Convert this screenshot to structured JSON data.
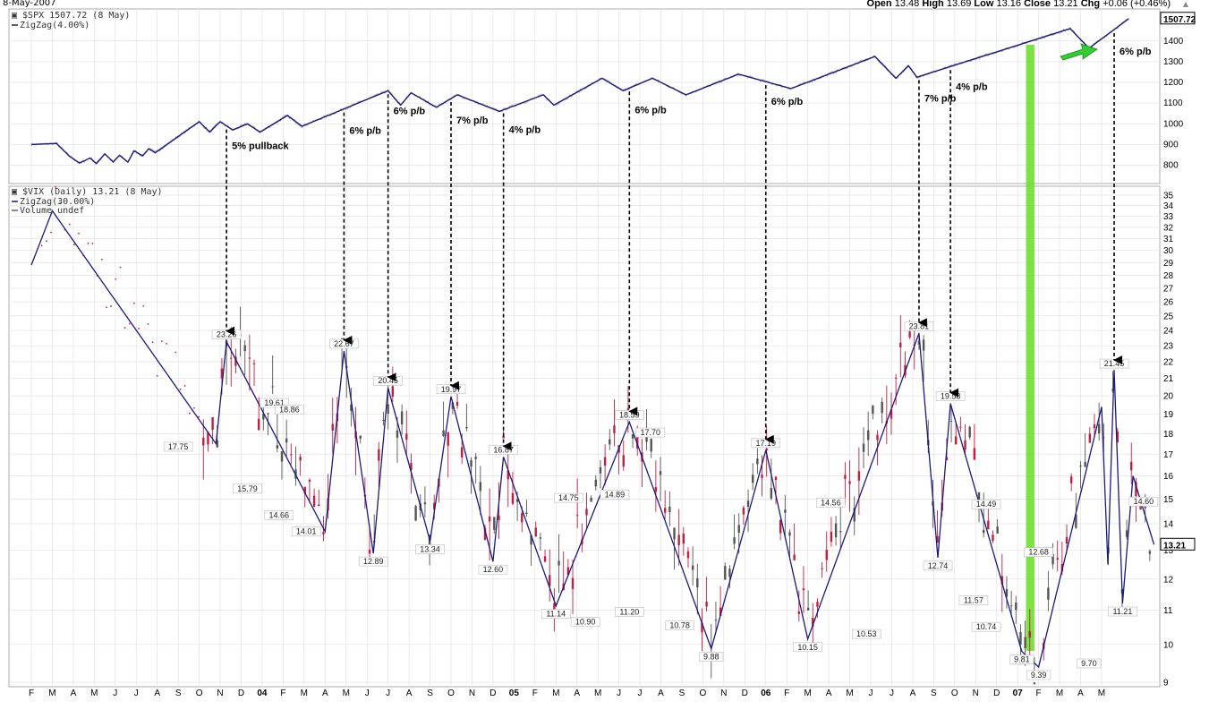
{
  "header": {
    "date": "8-May-2007",
    "open_label": "Open",
    "open": "13.48",
    "high_label": "High",
    "high": "13.69",
    "low_label": "Low",
    "low": "13.16",
    "close_label": "Close",
    "close": "13.21",
    "chg_label": "Chg",
    "chg": "+0.06 (+0.46%)"
  },
  "chart_data": [
    {
      "type": "line",
      "title": "$SPX 1507.72 (8 May)",
      "legend": [
        "ZigZag(4.00%)"
      ],
      "last_value": "1507.72",
      "ylim": [
        720,
        1520
      ],
      "yticks": [
        800,
        900,
        1000,
        1100,
        1200,
        1300,
        1400
      ],
      "zigzag": [
        {
          "t": 0,
          "v": 900
        },
        {
          "t": 1.2,
          "v": 905
        },
        {
          "t": 1.8,
          "v": 845
        },
        {
          "t": 2.3,
          "v": 810
        },
        {
          "t": 2.8,
          "v": 835
        },
        {
          "t": 3.1,
          "v": 808
        },
        {
          "t": 3.5,
          "v": 855
        },
        {
          "t": 3.9,
          "v": 815
        },
        {
          "t": 4.2,
          "v": 848
        },
        {
          "t": 4.6,
          "v": 815
        },
        {
          "t": 4.9,
          "v": 870
        },
        {
          "t": 5.3,
          "v": 845
        },
        {
          "t": 5.6,
          "v": 880
        },
        {
          "t": 5.9,
          "v": 860
        },
        {
          "t": 8.0,
          "v": 1010
        },
        {
          "t": 8.5,
          "v": 960
        },
        {
          "t": 9.0,
          "v": 1010
        },
        {
          "t": 9.6,
          "v": 970
        },
        {
          "t": 10.3,
          "v": 1000
        },
        {
          "t": 10.9,
          "v": 960
        },
        {
          "t": 12.2,
          "v": 1040
        },
        {
          "t": 12.9,
          "v": 988
        },
        {
          "t": 17.0,
          "v": 1160
        },
        {
          "t": 17.6,
          "v": 1090
        },
        {
          "t": 18.1,
          "v": 1150
        },
        {
          "t": 19.3,
          "v": 1080
        },
        {
          "t": 20.3,
          "v": 1140
        },
        {
          "t": 22.3,
          "v": 1060
        },
        {
          "t": 24.4,
          "v": 1140
        },
        {
          "t": 24.9,
          "v": 1090
        },
        {
          "t": 27.2,
          "v": 1220
        },
        {
          "t": 28.2,
          "v": 1160
        },
        {
          "t": 29.6,
          "v": 1220
        },
        {
          "t": 31.2,
          "v": 1140
        },
        {
          "t": 33.7,
          "v": 1240
        },
        {
          "t": 36.2,
          "v": 1170
        },
        {
          "t": 40.2,
          "v": 1325
        },
        {
          "t": 41.2,
          "v": 1220
        },
        {
          "t": 41.8,
          "v": 1280
        },
        {
          "t": 42.2,
          "v": 1225
        },
        {
          "t": 49.5,
          "v": 1460
        },
        {
          "t": 50.4,
          "v": 1365
        },
        {
          "t": 52.3,
          "v": 1508
        }
      ],
      "annotations": [
        {
          "text": "5% pullback",
          "t": 9.5
        },
        {
          "text": "6% p/b",
          "t": 15.0
        },
        {
          "text": "6% p/b",
          "t": 17.4
        },
        {
          "text": "7% p/b",
          "t": 20.3
        },
        {
          "text": "4% p/b",
          "t": 23.0
        },
        {
          "text": "6% p/b",
          "t": 28.8
        },
        {
          "text": "6% p/b",
          "t": 35.0
        },
        {
          "text": "7% p/b",
          "t": 41.2
        },
        {
          "text": "4% p/b",
          "t": 42.7
        },
        {
          "text": "6% p/b",
          "t": 52.0
        }
      ]
    },
    {
      "type": "line",
      "title": "$VIX (Daily) 13.21 (8 May)",
      "legend": [
        "ZigZag(30.00%)",
        "Volume undef"
      ],
      "last_value": "13.21",
      "ylim": [
        9,
        35
      ],
      "yticks": [
        9,
        10,
        11,
        12,
        13,
        14,
        15,
        16,
        17,
        18,
        19,
        20,
        21,
        22,
        23,
        24,
        25,
        26,
        27,
        28,
        29,
        30,
        31,
        32,
        33,
        34,
        35
      ],
      "zigzag": [
        {
          "t": 0.0,
          "v": 28.8
        },
        {
          "t": 1.0,
          "v": 33.5
        },
        {
          "t": 8.8,
          "v": 17.5
        },
        {
          "t": 9.3,
          "v": 23.26
        },
        {
          "t": 14.0,
          "v": 13.7
        },
        {
          "t": 14.9,
          "v": 22.67
        },
        {
          "t": 16.3,
          "v": 12.89
        },
        {
          "t": 17.0,
          "v": 20.45
        },
        {
          "t": 19.0,
          "v": 13.34
        },
        {
          "t": 20.0,
          "v": 19.97
        },
        {
          "t": 22.0,
          "v": 12.6
        },
        {
          "t": 22.5,
          "v": 16.87
        },
        {
          "t": 25.0,
          "v": 11.14
        },
        {
          "t": 28.5,
          "v": 18.59
        },
        {
          "t": 32.4,
          "v": 9.88
        },
        {
          "t": 35.0,
          "v": 17.19
        },
        {
          "t": 37.0,
          "v": 10.15
        },
        {
          "t": 42.3,
          "v": 23.81
        },
        {
          "t": 43.2,
          "v": 12.74
        },
        {
          "t": 43.8,
          "v": 19.58
        },
        {
          "t": 47.2,
          "v": 9.81
        },
        {
          "t": 48.0,
          "v": 9.39
        },
        {
          "t": 51.0,
          "v": 19.4
        },
        {
          "t": 51.3,
          "v": 12.5
        },
        {
          "t": 51.6,
          "v": 21.5
        },
        {
          "t": 52.0,
          "v": 11.21
        },
        {
          "t": 52.5,
          "v": 16.0
        },
        {
          "t": 53.5,
          "v": 13.21
        }
      ],
      "labels": [
        {
          "text": "23.26",
          "t": 9.3,
          "v": 23.26,
          "pos": "above"
        },
        {
          "text": "19.61",
          "t": 10.9,
          "v": 19.61,
          "pos": "right"
        },
        {
          "text": "17.75",
          "t": 7.0,
          "v": 17.75,
          "pos": "below"
        },
        {
          "text": "18.86",
          "t": 12.3,
          "v": 18.86,
          "pos": "above"
        },
        {
          "text": "15.79",
          "t": 10.3,
          "v": 15.79,
          "pos": "below"
        },
        {
          "text": "14.66",
          "t": 11.8,
          "v": 14.66,
          "pos": "below"
        },
        {
          "text": "14.01",
          "t": 13.1,
          "v": 14.01,
          "pos": "below"
        },
        {
          "text": "22.67",
          "t": 14.9,
          "v": 22.67,
          "pos": "above"
        },
        {
          "text": "12.89",
          "t": 16.3,
          "v": 12.89,
          "pos": "below"
        },
        {
          "text": "20.45",
          "t": 17.0,
          "v": 20.45,
          "pos": "above"
        },
        {
          "text": "13.34",
          "t": 19.0,
          "v": 13.34,
          "pos": "below"
        },
        {
          "text": "19.97",
          "t": 20.0,
          "v": 19.97,
          "pos": "above"
        },
        {
          "text": "12.60",
          "t": 22.0,
          "v": 12.6,
          "pos": "below"
        },
        {
          "text": "16.87",
          "t": 22.5,
          "v": 16.87,
          "pos": "above"
        },
        {
          "text": "14.75",
          "t": 25.6,
          "v": 14.75,
          "pos": "above"
        },
        {
          "text": "11.14",
          "t": 25.0,
          "v": 11.14,
          "pos": "below"
        },
        {
          "text": "10.90",
          "t": 26.4,
          "v": 10.9,
          "pos": "below"
        },
        {
          "text": "14.89",
          "t": 27.8,
          "v": 14.89,
          "pos": "above"
        },
        {
          "text": "11.20",
          "t": 28.5,
          "v": 11.2,
          "pos": "below"
        },
        {
          "text": "18.59",
          "t": 28.5,
          "v": 18.59,
          "pos": "above"
        },
        {
          "text": "17.70",
          "t": 29.5,
          "v": 17.7,
          "pos": "above"
        },
        {
          "text": "10.78",
          "t": 30.9,
          "v": 10.78,
          "pos": "below"
        },
        {
          "text": "9.88",
          "t": 32.4,
          "v": 9.88,
          "pos": "below"
        },
        {
          "text": "17.19",
          "t": 35.0,
          "v": 17.19,
          "pos": "above"
        },
        {
          "text": "10.15",
          "t": 37.0,
          "v": 10.15,
          "pos": "below"
        },
        {
          "text": "14.56",
          "t": 38.1,
          "v": 14.56,
          "pos": "above"
        },
        {
          "text": "10.53",
          "t": 39.8,
          "v": 10.53,
          "pos": "below"
        },
        {
          "text": "23.81",
          "t": 42.3,
          "v": 23.81,
          "pos": "above"
        },
        {
          "text": "12.74",
          "t": 43.2,
          "v": 12.74,
          "pos": "below"
        },
        {
          "text": "19.58",
          "t": 43.8,
          "v": 19.58,
          "pos": "above"
        },
        {
          "text": "14.49",
          "t": 45.5,
          "v": 14.49,
          "pos": "above"
        },
        {
          "text": "11.57",
          "t": 44.9,
          "v": 11.57,
          "pos": "below"
        },
        {
          "text": "10.74",
          "t": 45.5,
          "v": 10.74,
          "pos": "below"
        },
        {
          "text": "12.68",
          "t": 48.0,
          "v": 12.68,
          "pos": "above"
        },
        {
          "text": "9.81",
          "t": 47.2,
          "v": 9.81,
          "pos": "below"
        },
        {
          "text": "9.39",
          "t": 48.0,
          "v": 9.39,
          "pos": "below"
        },
        {
          "text": "21.45",
          "t": 51.6,
          "v": 21.45,
          "pos": "above"
        },
        {
          "text": "11.21",
          "t": 52.0,
          "v": 11.21,
          "pos": "below"
        },
        {
          "text": "9.70",
          "t": 50.4,
          "v": 9.7,
          "pos": "below"
        },
        {
          "text": "14.60",
          "t": 53.0,
          "v": 14.6,
          "pos": "above"
        }
      ],
      "arrow_targets": [
        {
          "t": 9.3,
          "v": 23.26
        },
        {
          "t": 14.9,
          "v": 22.67
        },
        {
          "t": 17.0,
          "v": 20.45
        },
        {
          "t": 20.0,
          "v": 19.97
        },
        {
          "t": 22.5,
          "v": 16.87
        },
        {
          "t": 28.5,
          "v": 18.59
        },
        {
          "t": 35.0,
          "v": 17.19
        },
        {
          "t": 42.3,
          "v": 23.81
        },
        {
          "t": 43.8,
          "v": 19.58
        },
        {
          "t": 51.6,
          "v": 21.45
        }
      ],
      "highlight_band_t": [
        47.4,
        47.8
      ]
    }
  ],
  "x_axis": {
    "months": [
      "F",
      "M",
      "A",
      "M",
      "J",
      "J",
      "A",
      "S",
      "O",
      "N",
      "D",
      "04",
      "F",
      "M",
      "A",
      "M",
      "J",
      "J",
      "A",
      "S",
      "O",
      "N",
      "D",
      "05",
      "F",
      "M",
      "A",
      "M",
      "J",
      "J",
      "A",
      "S",
      "O",
      "N",
      "D",
      "06",
      "F",
      "M",
      "A",
      "M",
      "J",
      "J",
      "A",
      "S",
      "O",
      "N",
      "D",
      "07",
      "F",
      "M",
      "A",
      "M"
    ],
    "bold": [
      "04",
      "05",
      "06",
      "07"
    ]
  },
  "colors": {
    "zigzag": "#1a1a7a",
    "spx_price": "#b0b0b0",
    "vix_up": "#555555",
    "vix_down": "#c02040",
    "grid": "#e2e2e2",
    "green_band": "#66dd22",
    "green_arrow": "#33cc33"
  }
}
